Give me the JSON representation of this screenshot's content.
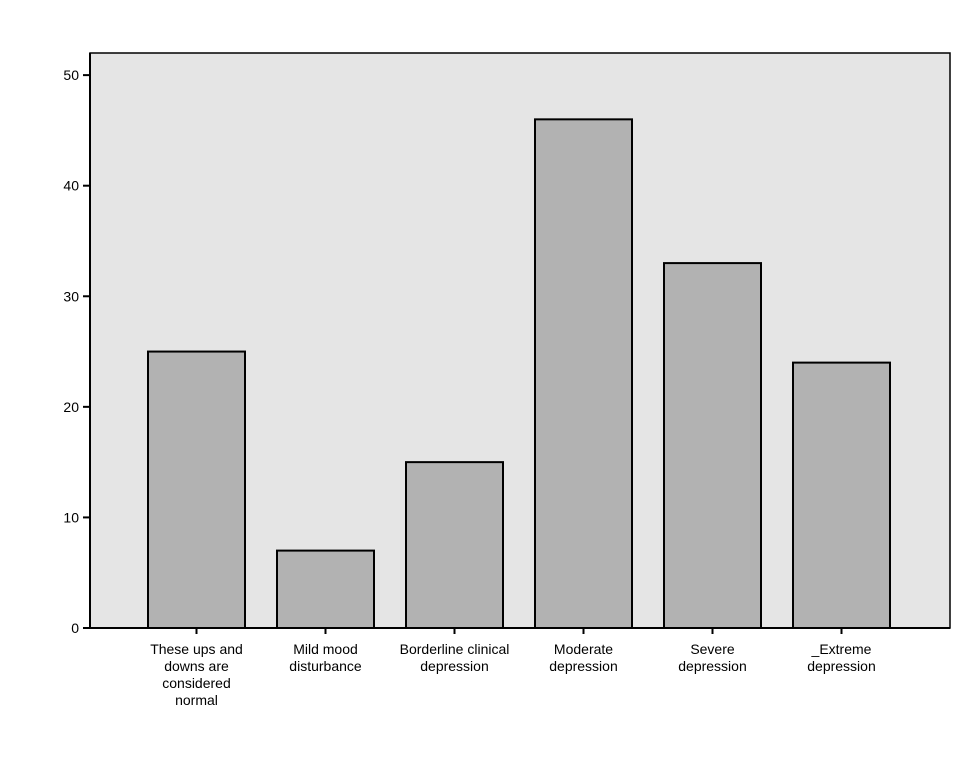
{
  "chart_data": {
    "type": "bar",
    "title": "",
    "xlabel": "",
    "ylabel": "",
    "categories": [
      [
        "These ups and",
        "downs are",
        "considered",
        "normal"
      ],
      [
        "Mild mood",
        "disturbance"
      ],
      [
        "Borderline clinical",
        "depression"
      ],
      [
        "Moderate",
        "depression"
      ],
      [
        "Severe",
        "depression"
      ],
      [
        "_Extreme",
        "depression"
      ]
    ],
    "values": [
      25,
      7,
      15,
      46,
      33,
      24
    ],
    "ylim": [
      0,
      52
    ],
    "yticks": [
      0,
      10,
      20,
      30,
      40,
      50
    ],
    "grid": false,
    "colors": {
      "plot_background": "#e5e5e5",
      "bar_fill": "#b2b2b2",
      "bar_stroke": "#000000",
      "axis": "#000000"
    }
  }
}
